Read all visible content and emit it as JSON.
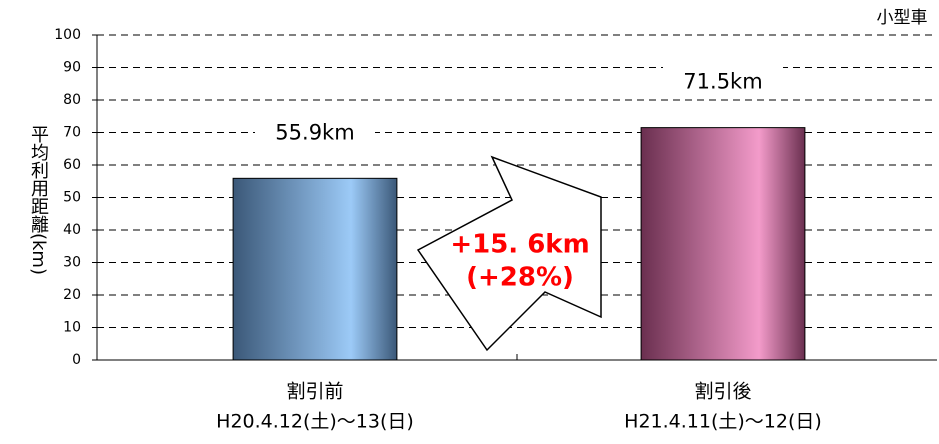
{
  "chart_data": {
    "type": "bar",
    "y_label": "平均利用距離(km)",
    "note": "小型車",
    "categories": [
      "割引前",
      "割引後"
    ],
    "periods": [
      "H20.4.12(土)〜13(日)",
      "H21.4.11(土)〜12(日)"
    ],
    "values": [
      55.9,
      71.5
    ],
    "value_labels": [
      "55.9km",
      "71.5km"
    ],
    "colors": [
      [
        "#3b5878",
        "#9ccaf7"
      ],
      [
        "#6a2f4f",
        "#f39bca"
      ]
    ],
    "ylim": [
      0,
      100
    ],
    "yticks": [
      0,
      10,
      20,
      30,
      40,
      50,
      60,
      70,
      80,
      90,
      100
    ],
    "grid": true,
    "annotation": [
      "+15. 6km",
      "(+28%)"
    ]
  }
}
